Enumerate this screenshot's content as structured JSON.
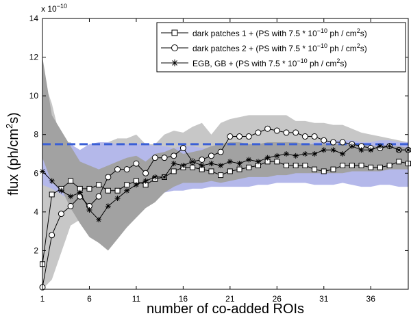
{
  "chart_data": {
    "type": "line",
    "xlabel": "number of co-added ROIs",
    "ylabel": "flux (ph/cm",
    "ylabel_sup": "2",
    "ylabel_end": "s)",
    "exponent_base": "x 10",
    "exponent_power": "−10",
    "xlim": [
      1,
      40
    ],
    "ylim": [
      0,
      14
    ],
    "x_ticks": [
      1,
      6,
      11,
      16,
      21,
      26,
      31,
      36
    ],
    "y_ticks": [
      2,
      4,
      6,
      8,
      10,
      12,
      14
    ],
    "reference_line": {
      "value": 7.5,
      "color": "#3a5fd6",
      "style": "dashed"
    },
    "legend": {
      "position": "top-right",
      "entries": [
        {
          "prefix": "dark patches 1 + (PS with 7.5 * 10",
          "sup": "−10",
          "mid": " ph / cm",
          "sup2": "2",
          "suffix": "s)",
          "marker": "square"
        },
        {
          "prefix": "dark patches 2 + (PS with 7.5 * 10",
          "sup": "−10",
          "mid": " ph / cm",
          "sup2": "2",
          "suffix": "s)",
          "marker": "circle"
        },
        {
          "prefix": "EGB, GB + (PS with 7.5 * 10",
          "sup": "−10",
          "mid": " ph / cm",
          "sup2": "2",
          "suffix": "s)",
          "marker": "asterisk"
        }
      ]
    },
    "x": [
      1,
      2,
      3,
      4,
      5,
      6,
      7,
      8,
      9,
      10,
      11,
      12,
      13,
      14,
      15,
      16,
      17,
      18,
      19,
      20,
      21,
      22,
      23,
      24,
      25,
      26,
      27,
      28,
      29,
      30,
      31,
      32,
      33,
      34,
      35,
      36,
      37,
      38,
      39,
      40
    ],
    "series": [
      {
        "name": "dark patches 1",
        "marker": "square",
        "values": [
          1.3,
          4.9,
          5.2,
          5.6,
          5.2,
          5.2,
          5.4,
          5.1,
          5.1,
          5.4,
          5.6,
          5.4,
          5.7,
          5.8,
          6.1,
          6.3,
          6.3,
          6.2,
          6.1,
          5.9,
          6.1,
          6.2,
          6.3,
          6.4,
          6.6,
          6.6,
          6.4,
          6.4,
          6.4,
          6.2,
          6.1,
          6.2,
          6.4,
          6.4,
          6.4,
          6.3,
          6.3,
          6.4,
          6.6,
          6.5
        ]
      },
      {
        "name": "dark patches 2",
        "marker": "circle",
        "values": [
          0.1,
          2.8,
          3.9,
          4.3,
          4.8,
          4.3,
          4.8,
          5.8,
          6.2,
          6.2,
          6.5,
          6.0,
          6.8,
          6.8,
          6.9,
          7.3,
          6.6,
          6.7,
          6.9,
          7.1,
          7.9,
          7.9,
          7.9,
          8.1,
          8.3,
          8.2,
          8.1,
          8.1,
          7.9,
          7.9,
          7.7,
          7.6,
          7.6,
          7.5,
          7.4,
          7.3,
          7.3,
          7.4,
          7.2,
          7.2
        ]
      },
      {
        "name": "EGB, GB",
        "marker": "asterisk",
        "values": [
          6.1,
          5.6,
          5.1,
          4.8,
          5.0,
          4.1,
          3.6,
          4.3,
          4.7,
          5.1,
          5.4,
          5.6,
          5.8,
          5.8,
          6.5,
          6.4,
          6.6,
          6.4,
          6.5,
          6.4,
          6.6,
          6.5,
          6.7,
          6.6,
          6.8,
          6.9,
          7.0,
          6.9,
          7.0,
          7.0,
          7.2,
          7.2,
          7.0,
          7.4,
          7.2,
          7.2,
          7.4,
          7.4,
          7.2,
          7.2
        ]
      }
    ],
    "bands": [
      {
        "name": "light gray band",
        "color": "#c7c7c7",
        "upper": [
          11.0,
          9.6,
          7.6,
          7.6,
          7.0,
          6.5,
          7.5,
          7.6,
          7.8,
          7.8,
          8.0,
          7.5,
          7.5,
          8.0,
          8.2,
          8.1,
          8.4,
          8.6,
          8.0,
          8.6,
          8.8,
          8.9,
          9.0,
          9.0,
          9.0,
          9.0,
          9.0,
          8.7,
          8.7,
          8.6,
          8.6,
          8.5,
          8.5,
          8.3,
          8.1,
          8.0,
          7.9,
          7.8,
          7.7,
          7.6
        ],
        "lower": [
          0.0,
          0.5,
          1.9,
          3.3,
          3.6,
          3.4,
          4.1,
          5.0,
          5.3,
          5.1,
          5.2,
          5.4,
          5.6,
          5.6,
          5.9,
          5.9,
          6.0,
          6.0,
          6.0,
          6.0,
          6.3,
          6.6,
          6.8,
          6.8,
          6.9,
          6.9,
          7.0,
          6.9,
          6.8,
          6.9,
          6.8,
          6.8,
          6.7,
          6.7,
          6.8,
          6.8,
          6.8,
          6.7,
          6.7,
          6.6
        ]
      },
      {
        "name": "blue band",
        "color": "#b4b8ea",
        "upper": [
          6.8,
          7.2,
          7.6,
          7.5,
          7.2,
          7.5,
          7.6,
          7.6,
          7.5,
          7.5,
          7.5,
          7.5,
          7.4,
          7.4,
          7.3,
          7.4,
          7.4,
          7.3,
          7.3,
          7.3,
          7.2,
          7.2,
          7.2,
          7.1,
          7.2,
          7.2,
          7.3,
          7.4,
          7.4,
          7.6,
          7.6,
          7.7,
          7.7,
          7.7,
          7.6,
          7.6,
          7.7,
          7.7,
          7.6,
          7.6
        ],
        "lower": [
          5.4,
          5.2,
          4.9,
          4.6,
          4.8,
          4.6,
          4.7,
          4.7,
          4.8,
          4.8,
          4.9,
          4.9,
          5.0,
          5.0,
          5.1,
          5.1,
          5.2,
          5.2,
          5.3,
          5.3,
          5.3,
          5.3,
          5.3,
          5.4,
          5.4,
          5.5,
          5.5,
          5.5,
          5.5,
          5.4,
          5.4,
          5.4,
          5.5,
          5.4,
          5.3,
          5.3,
          5.4,
          5.4,
          5.3,
          5.3
        ]
      },
      {
        "name": "dark gray band",
        "color": "#a2a2a2",
        "upper": [
          12.0,
          9.0,
          8.2,
          7.4,
          6.6,
          6.4,
          6.2,
          6.4,
          6.6,
          6.8,
          6.9,
          6.6,
          7.0,
          7.1,
          7.3,
          7.0,
          7.1,
          7.2,
          7.4,
          7.5,
          7.6,
          7.6,
          7.5,
          7.5,
          7.6,
          7.6,
          7.6,
          7.6,
          7.5,
          7.5,
          7.5,
          7.5,
          7.5,
          7.5,
          7.5,
          7.4,
          7.4,
          7.4,
          7.4,
          7.3
        ],
        "lower": [
          6.8,
          5.5,
          5.2,
          4.2,
          3.4,
          2.7,
          2.4,
          2.0,
          2.6,
          3.2,
          3.7,
          4.2,
          4.5,
          5.0,
          5.3,
          5.5,
          5.5,
          5.5,
          5.6,
          5.5,
          5.6,
          5.7,
          5.8,
          5.8,
          5.8,
          5.9,
          5.9,
          6.0,
          6.0,
          6.0,
          6.0,
          6.0,
          6.0,
          6.1,
          6.1,
          6.1,
          6.1,
          6.2,
          6.2,
          6.2
        ]
      }
    ]
  }
}
